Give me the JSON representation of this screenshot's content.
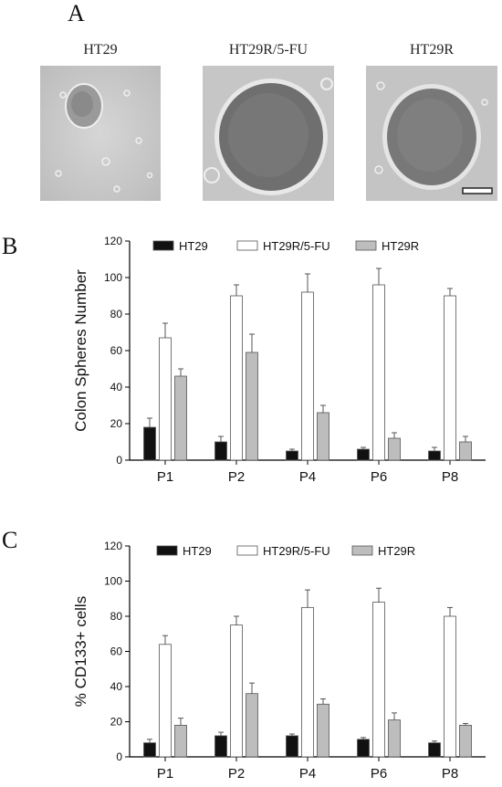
{
  "panel_a": {
    "letter": "A",
    "images": [
      {
        "label": "HT29"
      },
      {
        "label": "HT29R/5-FU"
      },
      {
        "label": "HT29R"
      }
    ]
  },
  "colors": {
    "HT29": "#111111",
    "HT29R/5-FU": "#ffffff",
    "HT29R": "#bdbdbd",
    "bar_edge": "#555555"
  },
  "chart_data": [
    {
      "letter": "B",
      "type": "bar",
      "ylabel": "Colon Spheres Number",
      "ylim": [
        0,
        120
      ],
      "yticks": [
        0,
        20,
        40,
        60,
        80,
        100,
        120
      ],
      "categories": [
        "P1",
        "P2",
        "P4",
        "P6",
        "P8"
      ],
      "legend": "top",
      "series": [
        {
          "name": "HT29",
          "values": [
            18,
            10,
            5,
            6,
            5
          ],
          "errors": [
            5,
            3,
            1,
            1,
            2
          ]
        },
        {
          "name": "HT29R/5-FU",
          "values": [
            67,
            90,
            92,
            96,
            90
          ],
          "errors": [
            8,
            6,
            10,
            9,
            4
          ]
        },
        {
          "name": "HT29R",
          "values": [
            46,
            59,
            26,
            12,
            10
          ],
          "errors": [
            4,
            10,
            4,
            3,
            3
          ]
        }
      ]
    },
    {
      "letter": "C",
      "type": "bar",
      "ylabel": "% CD133+ cells",
      "ylim": [
        0,
        120
      ],
      "yticks": [
        0,
        20,
        40,
        60,
        80,
        100,
        120
      ],
      "categories": [
        "P1",
        "P2",
        "P4",
        "P6",
        "P8"
      ],
      "legend": "top",
      "series": [
        {
          "name": "HT29",
          "values": [
            8,
            12,
            12,
            10,
            8
          ],
          "errors": [
            2,
            2,
            1,
            1,
            1
          ]
        },
        {
          "name": "HT29R/5-FU",
          "values": [
            64,
            75,
            85,
            88,
            80
          ],
          "errors": [
            5,
            5,
            10,
            8,
            5
          ]
        },
        {
          "name": "HT29R",
          "values": [
            18,
            36,
            30,
            21,
            18
          ],
          "errors": [
            4,
            6,
            3,
            4,
            1
          ]
        }
      ]
    }
  ]
}
